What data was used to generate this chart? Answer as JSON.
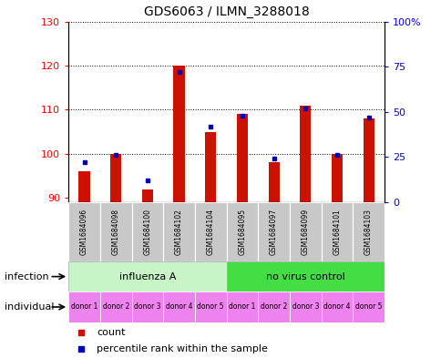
{
  "title": "GDS6063 / ILMN_3288018",
  "samples": [
    "GSM1684096",
    "GSM1684098",
    "GSM1684100",
    "GSM1684102",
    "GSM1684104",
    "GSM1684095",
    "GSM1684097",
    "GSM1684099",
    "GSM1684101",
    "GSM1684103"
  ],
  "red_values": [
    96,
    100,
    92,
    120,
    105,
    109,
    98,
    111,
    100,
    108
  ],
  "blue_values": [
    22,
    26,
    12,
    72,
    42,
    48,
    24,
    52,
    26,
    47
  ],
  "ylim_left": [
    89,
    130
  ],
  "ylim_right": [
    0,
    100
  ],
  "yticks_left": [
    90,
    100,
    110,
    120,
    130
  ],
  "yticks_right": [
    0,
    25,
    50,
    75,
    100
  ],
  "ytick_labels_right": [
    "0",
    "25",
    "50",
    "75",
    "100%"
  ],
  "infection_group1_label": "influenza A",
  "infection_group1_color": "#c8f5c8",
  "infection_group2_label": "no virus control",
  "infection_group2_color": "#44dd44",
  "individual_labels": [
    "donor 1",
    "donor 2",
    "donor 3",
    "donor 4",
    "donor 5",
    "donor 1",
    "donor 2",
    "donor 3",
    "donor 4",
    "donor 5"
  ],
  "individual_colors": [
    "#f0b0f0",
    "#ee80ee",
    "#ee80ee",
    "#cc44cc",
    "#ee44ee",
    "#f0b0f0",
    "#ee80ee",
    "#ee80ee",
    "#cc44cc",
    "#ee44ee"
  ],
  "bar_color": "#cc1100",
  "blue_color": "#0000bb",
  "label_bg_color": "#c8c8c8",
  "infection_label": "infection",
  "individual_label": "individual",
  "legend_count": "count",
  "legend_percentile": "percentile rank within the sample",
  "grid_yticks": [
    100,
    110,
    120,
    130
  ]
}
